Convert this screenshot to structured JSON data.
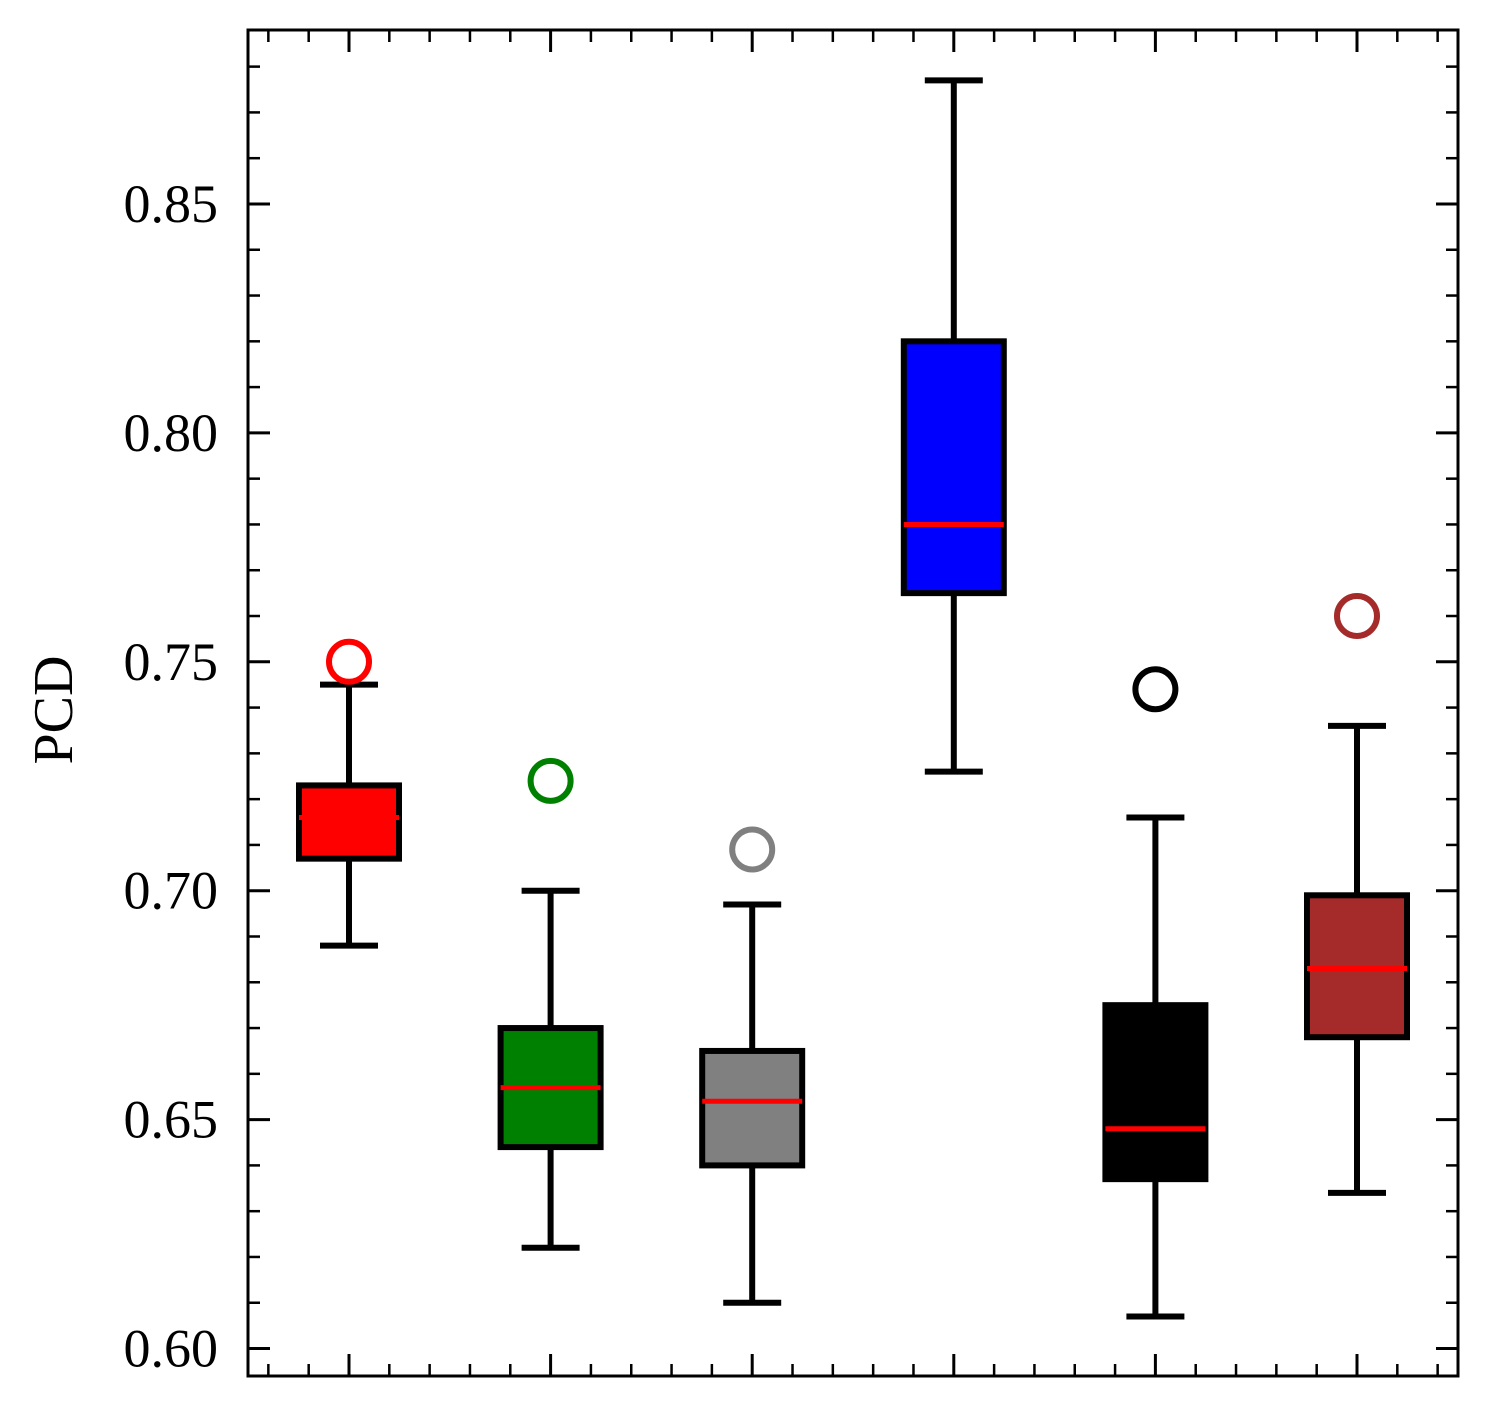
{
  "chart_data": {
    "type": "box",
    "title": "",
    "xlabel": "",
    "ylabel": "PCD",
    "ylim": [
      0.594,
      0.888
    ],
    "yticks": [
      "0.60",
      "0.65",
      "0.70",
      "0.75",
      "0.80",
      "0.85"
    ],
    "grid": false,
    "boxes": [
      {
        "color": "#ff0000",
        "whisker_low": 0.688,
        "q1": 0.707,
        "median": 0.716,
        "q3": 0.723,
        "whisker_high": 0.745,
        "outliers": [
          0.75
        ]
      },
      {
        "color": "#008000",
        "whisker_low": 0.622,
        "q1": 0.644,
        "median": 0.657,
        "q3": 0.67,
        "whisker_high": 0.7,
        "outliers": [
          0.724
        ]
      },
      {
        "color": "#808080",
        "whisker_low": 0.61,
        "q1": 0.64,
        "median": 0.654,
        "q3": 0.665,
        "whisker_high": 0.697,
        "outliers": [
          0.709
        ]
      },
      {
        "color": "#0000ff",
        "whisker_low": 0.726,
        "q1": 0.765,
        "median": 0.78,
        "q3": 0.82,
        "whisker_high": 0.877,
        "outliers": []
      },
      {
        "color": "#000000",
        "whisker_low": 0.607,
        "q1": 0.637,
        "median": 0.648,
        "q3": 0.675,
        "whisker_high": 0.716,
        "outliers": [
          0.744
        ]
      },
      {
        "color": "#a52a2a",
        "whisker_low": 0.634,
        "q1": 0.668,
        "median": 0.683,
        "q3": 0.699,
        "whisker_high": 0.736,
        "outliers": [
          0.76
        ]
      }
    ],
    "median_color": "#ff0000"
  }
}
